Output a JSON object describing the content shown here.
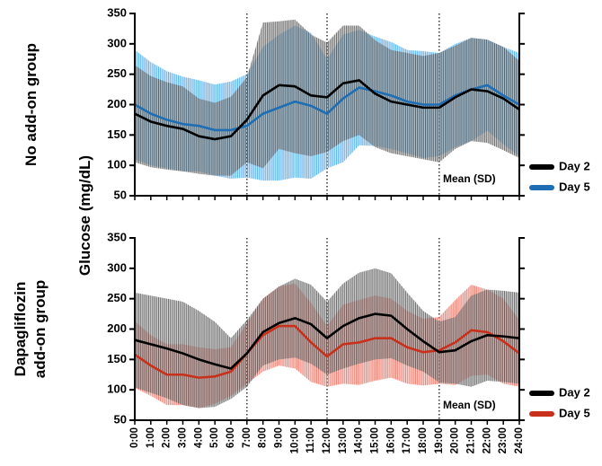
{
  "shared_ylabel": "Glucose (mg/dL)",
  "chart_data": [
    {
      "type": "line",
      "group": [
        "No add-on group"
      ],
      "annotation": "Mean (SD)",
      "ylim": [
        50,
        350
      ],
      "yticks": [
        50,
        100,
        150,
        200,
        250,
        300,
        350
      ],
      "vlines": [
        7,
        12,
        19
      ],
      "series": [
        {
          "name": "Day 5",
          "color": "#1f6eb3",
          "band_color": "#45a8ee",
          "values": [
            200,
            185,
            175,
            168,
            165,
            158,
            158,
            165,
            185,
            195,
            205,
            198,
            185,
            210,
            228,
            222,
            215,
            205,
            200,
            200,
            215,
            225,
            232,
            215,
            200
          ],
          "sd": [
            90,
            85,
            80,
            78,
            75,
            75,
            80,
            85,
            110,
            120,
            125,
            120,
            90,
            105,
            95,
            90,
            88,
            85,
            88,
            85,
            85,
            85,
            75,
            80,
            85
          ]
        },
        {
          "name": "Day 2",
          "color": "#000000",
          "band_color": "#555555",
          "values": [
            185,
            172,
            165,
            160,
            148,
            143,
            148,
            175,
            215,
            232,
            230,
            215,
            212,
            235,
            240,
            218,
            205,
            200,
            195,
            195,
            212,
            225,
            222,
            210,
            192
          ],
          "sd": [
            80,
            75,
            72,
            70,
            62,
            60,
            65,
            70,
            120,
            105,
            110,
            100,
            90,
            95,
            90,
            88,
            85,
            85,
            85,
            90,
            85,
            85,
            85,
            85,
            80
          ]
        }
      ]
    },
    {
      "type": "line",
      "group": [
        "Dapagliflozin",
        "add-on group"
      ],
      "annotation": "Mean (SD)",
      "categories": [
        "0:00",
        "1:00",
        "2:00",
        "3:00",
        "4:00",
        "5:00",
        "6:00",
        "7:00",
        "8:00",
        "9:00",
        "10:00",
        "11:00",
        "12:00",
        "13:00",
        "14:00",
        "15:00",
        "16:00",
        "17:00",
        "18:00",
        "19:00",
        "20:00",
        "21:00",
        "22:00",
        "23:00",
        "24:00"
      ],
      "ylim": [
        50,
        350
      ],
      "yticks": [
        50,
        100,
        150,
        200,
        250,
        300,
        350
      ],
      "vlines": [
        7,
        12,
        19
      ],
      "series": [
        {
          "name": "Day 5",
          "color": "#c8301c",
          "band_color": "#f26a5a",
          "values": [
            158,
            140,
            125,
            125,
            120,
            122,
            130,
            160,
            190,
            205,
            205,
            178,
            155,
            175,
            178,
            185,
            185,
            170,
            162,
            165,
            178,
            198,
            195,
            180,
            160
          ],
          "sd": [
            55,
            50,
            50,
            50,
            50,
            45,
            40,
            50,
            60,
            65,
            70,
            65,
            50,
            65,
            70,
            70,
            65,
            60,
            55,
            55,
            70,
            75,
            70,
            70,
            55
          ]
        },
        {
          "name": "Day 2",
          "color": "#000000",
          "band_color": "#555555",
          "values": [
            182,
            175,
            168,
            160,
            150,
            142,
            135,
            160,
            195,
            210,
            218,
            208,
            185,
            205,
            218,
            225,
            222,
            200,
            180,
            162,
            165,
            180,
            190,
            188,
            185
          ],
          "sd": [
            78,
            80,
            82,
            85,
            80,
            70,
            50,
            55,
            55,
            60,
            65,
            65,
            60,
            70,
            75,
            75,
            70,
            60,
            50,
            50,
            55,
            75,
            75,
            75,
            75
          ]
        }
      ]
    }
  ]
}
